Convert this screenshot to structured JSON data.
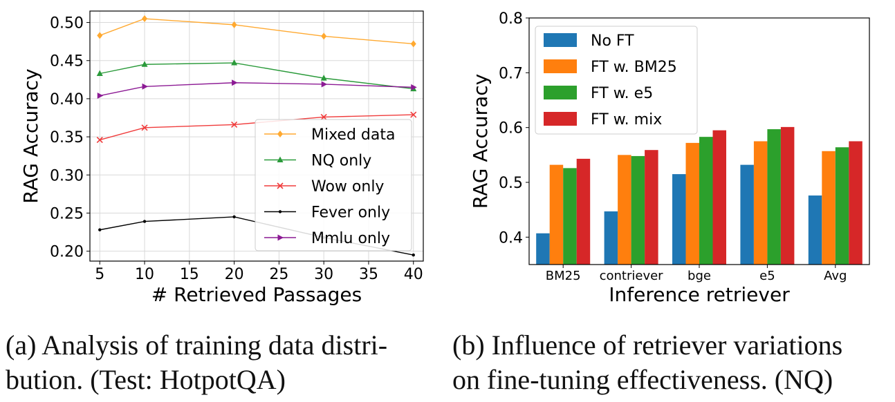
{
  "chart_data": [
    {
      "type": "line",
      "title": "",
      "xlabel": "# Retrieved Passages",
      "ylabel": "RAG Accuracy",
      "x": [
        5,
        10,
        20,
        30,
        40
      ],
      "xticks": [
        "5",
        "10",
        "15",
        "20",
        "25",
        "30",
        "35",
        "40"
      ],
      "yticks": [
        "0.20",
        "0.25",
        "0.30",
        "0.35",
        "0.40",
        "0.45",
        "0.50"
      ],
      "xlim": [
        3.9,
        41.1
      ],
      "ylim": [
        0.187,
        0.515
      ],
      "grid": true,
      "legend_position": "lower-right",
      "series": [
        {
          "name": "Mixed data",
          "values": [
            0.483,
            0.505,
            0.497,
            0.482,
            0.472
          ],
          "color": "#ffa930",
          "marker": "diamond"
        },
        {
          "name": "NQ only",
          "values": [
            0.433,
            0.445,
            0.447,
            0.427,
            0.413
          ],
          "color": "#2a9a3a",
          "marker": "triangle"
        },
        {
          "name": "Wow only",
          "values": [
            0.346,
            0.362,
            0.366,
            0.376,
            0.379
          ],
          "color": "#f03b3b",
          "marker": "x"
        },
        {
          "name": "Fever only",
          "values": [
            0.228,
            0.239,
            0.245,
            0.218,
            0.195
          ],
          "color": "#000000",
          "marker": "dot"
        },
        {
          "name": "Mmlu only",
          "values": [
            0.404,
            0.416,
            0.421,
            0.419,
            0.415
          ],
          "color": "#8c1a94",
          "marker": "triangle-right"
        }
      ],
      "caption": "(a) Analysis of training data distri- bution. (Test: HotpotQA)",
      "caption_lines": [
        "(a) Analysis of training data distri-",
        "bution. (Test: HotpotQA)"
      ]
    },
    {
      "type": "bar",
      "title": "",
      "xlabel": "Inference retriever",
      "ylabel": "RAG Accuracy",
      "categories": [
        "BM25",
        "contriever",
        "bge",
        "e5",
        "Avg"
      ],
      "yticks": [
        "0.4",
        "0.5",
        "0.6",
        "0.7",
        "0.8"
      ],
      "ylim": [
        0.35,
        0.8
      ],
      "grid": false,
      "legend_position": "upper-left",
      "series": [
        {
          "name": "No FT",
          "values": [
            0.407,
            0.447,
            0.515,
            0.532,
            0.476
          ],
          "color": "#1f77b4"
        },
        {
          "name": "FT w. BM25",
          "values": [
            0.532,
            0.55,
            0.572,
            0.575,
            0.557
          ],
          "color": "#ff7f0e"
        },
        {
          "name": "FT w. e5",
          "values": [
            0.526,
            0.548,
            0.583,
            0.597,
            0.564
          ],
          "color": "#2ca02c"
        },
        {
          "name": "FT w. mix",
          "values": [
            0.543,
            0.559,
            0.595,
            0.601,
            0.575
          ],
          "color": "#d62728"
        }
      ],
      "caption": "(b) Influence of retriever variations on fine-tuning effectiveness. (NQ)",
      "caption_lines": [
        "(b) Influence of retriever variations",
        "on fine-tuning effectiveness. (NQ)"
      ]
    }
  ]
}
